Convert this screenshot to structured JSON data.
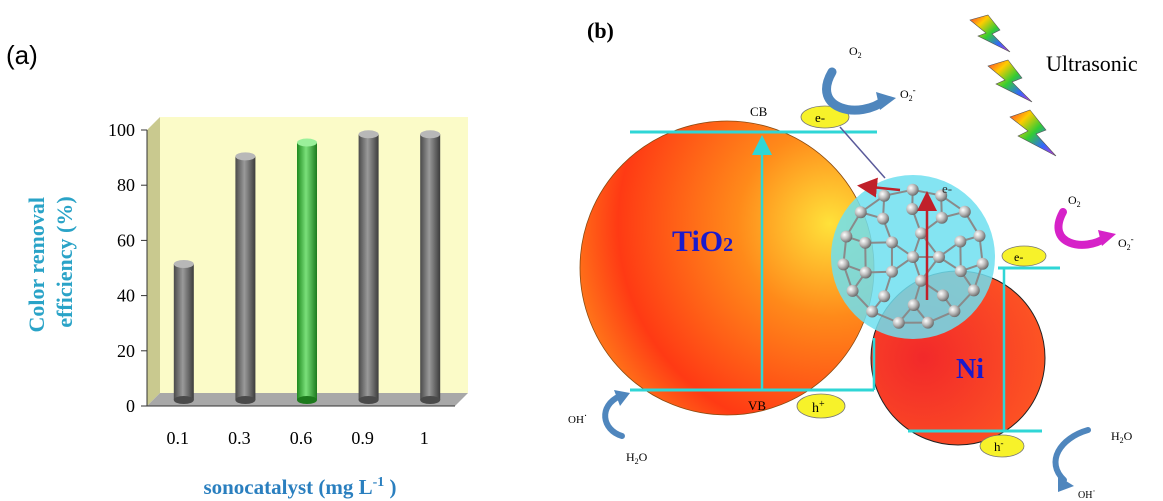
{
  "panel_a": {
    "label": "(a)",
    "ylabel_line1": "Color removal",
    "ylabel_line2": "efficiency (%)",
    "xlabel_main": "sonocatalyst (mg L",
    "xlabel_sup": "-1",
    "xlabel_close": " )"
  },
  "chart_data": {
    "type": "bar",
    "categories": [
      "0.1",
      "0.3",
      "0.6",
      "0.9",
      "1"
    ],
    "values": [
      50,
      89,
      94,
      97,
      97
    ],
    "highlight_index": 2,
    "ylim": [
      0,
      100
    ],
    "yticks": [
      0,
      20,
      40,
      60,
      80,
      100
    ],
    "xlabel": "sonocatalyst (mg L-1 )",
    "ylabel": "Color removal efficiency (%)",
    "grid": false,
    "colors": {
      "bar": "#6e6e6e",
      "bar_highlight": "#3fb83f",
      "plot_bg": "#fbfbc8",
      "side_wall": "#c9c98f",
      "floor": "#a8a8a8",
      "ylabel_color": "#2aa3c7",
      "xlabel_color": "#2a7fbf"
    }
  },
  "panel_b": {
    "label": "(b)",
    "ultrasonic": "Ultrasonic",
    "tio2_main": "TiO",
    "tio2_sub": "2",
    "ni": "Ni",
    "cb": "CB",
    "vb": "VB",
    "e_minus": "e-",
    "h_plus_main": "h",
    "h_plus_sup": "+",
    "h_minus_main": "h",
    "h_minus_sup": "-",
    "o2_main": "O",
    "o2_sub": "2",
    "o2_radical_sup": "-",
    "oh_radical": "OH",
    "oh_dot": "·",
    "h2o_h": "H",
    "h2o_sub": "2",
    "h2o_o": "O",
    "colors": {
      "tio2_text": "#1a1acc",
      "ni_text": "#1a1acc",
      "band_line": "#2fd6d6",
      "bubble": "#f7f22a",
      "arrow_blue": "#4f86bd",
      "arrow_magenta": "#d622c8",
      "e_transfer": "#c0202a",
      "fullerene_fill": "#6fdff0"
    }
  }
}
